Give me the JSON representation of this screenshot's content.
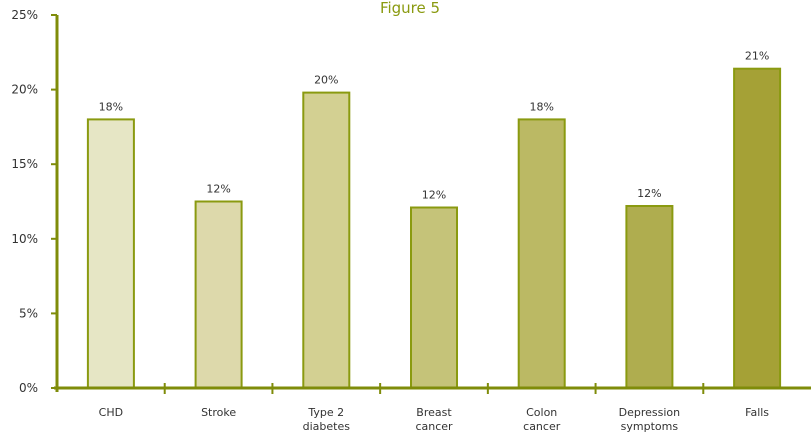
{
  "chart_data": {
    "type": "bar",
    "title": "Figure 5",
    "categories": [
      [
        "CHD"
      ],
      [
        "Stroke"
      ],
      [
        "Type 2",
        "diabetes"
      ],
      [
        "Breast",
        "cancer"
      ],
      [
        "Colon",
        "cancer"
      ],
      [
        "Depression",
        "symptoms"
      ],
      [
        "Falls"
      ]
    ],
    "values": [
      18,
      12.5,
      19.8,
      12.1,
      18,
      12.2,
      21.4
    ],
    "data_labels": [
      "18%",
      "12%",
      "20%",
      "12%",
      "18%",
      "12%",
      "21%"
    ],
    "ylim": [
      0,
      25
    ],
    "yticks": [
      0,
      5,
      10,
      15,
      20,
      25
    ],
    "ytick_labels": [
      "0%",
      "5%",
      "10%",
      "15%",
      "20%",
      "25%"
    ],
    "xlabel": "",
    "ylabel": "",
    "grid": false,
    "colors": {
      "axis": "#7f8c0a",
      "bar_edge": "#8a9a10",
      "title": "#8a9a10",
      "bar_fills": [
        "#e6e6c5",
        "#ddd9ab",
        "#d3d092",
        "#c5c379",
        "#bbb964",
        "#afad4f",
        "#a5a136"
      ]
    }
  }
}
